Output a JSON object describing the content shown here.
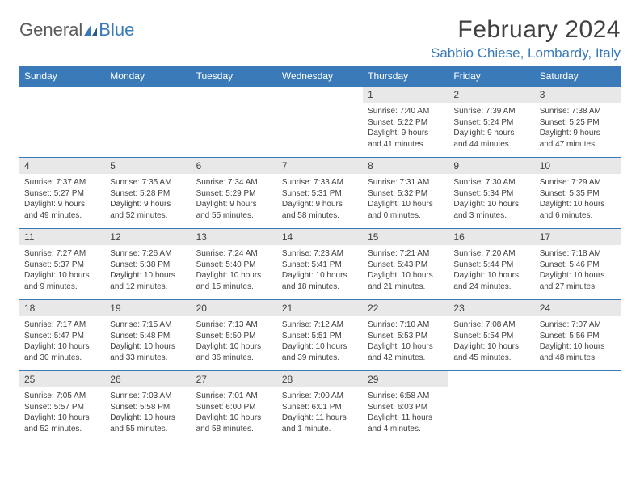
{
  "brand": {
    "part1": "General",
    "part2": "Blue"
  },
  "title": "February 2024",
  "location": "Sabbio Chiese, Lombardy, Italy",
  "colors": {
    "header_bg": "#3a7ab8",
    "header_fg": "#ffffff",
    "daynum_bg": "#e8e8e8",
    "border": "#3a7ab8",
    "text": "#404040",
    "logo_gray": "#5a5a5a",
    "logo_blue": "#3a7ab8"
  },
  "weekdays": [
    "Sunday",
    "Monday",
    "Tuesday",
    "Wednesday",
    "Thursday",
    "Friday",
    "Saturday"
  ],
  "weeks": [
    [
      {
        "empty": true
      },
      {
        "empty": true
      },
      {
        "empty": true
      },
      {
        "empty": true
      },
      {
        "date": "1",
        "sunrise": "Sunrise: 7:40 AM",
        "sunset": "Sunset: 5:22 PM",
        "daylight1": "Daylight: 9 hours",
        "daylight2": "and 41 minutes."
      },
      {
        "date": "2",
        "sunrise": "Sunrise: 7:39 AM",
        "sunset": "Sunset: 5:24 PM",
        "daylight1": "Daylight: 9 hours",
        "daylight2": "and 44 minutes."
      },
      {
        "date": "3",
        "sunrise": "Sunrise: 7:38 AM",
        "sunset": "Sunset: 5:25 PM",
        "daylight1": "Daylight: 9 hours",
        "daylight2": "and 47 minutes."
      }
    ],
    [
      {
        "date": "4",
        "sunrise": "Sunrise: 7:37 AM",
        "sunset": "Sunset: 5:27 PM",
        "daylight1": "Daylight: 9 hours",
        "daylight2": "and 49 minutes."
      },
      {
        "date": "5",
        "sunrise": "Sunrise: 7:35 AM",
        "sunset": "Sunset: 5:28 PM",
        "daylight1": "Daylight: 9 hours",
        "daylight2": "and 52 minutes."
      },
      {
        "date": "6",
        "sunrise": "Sunrise: 7:34 AM",
        "sunset": "Sunset: 5:29 PM",
        "daylight1": "Daylight: 9 hours",
        "daylight2": "and 55 minutes."
      },
      {
        "date": "7",
        "sunrise": "Sunrise: 7:33 AM",
        "sunset": "Sunset: 5:31 PM",
        "daylight1": "Daylight: 9 hours",
        "daylight2": "and 58 minutes."
      },
      {
        "date": "8",
        "sunrise": "Sunrise: 7:31 AM",
        "sunset": "Sunset: 5:32 PM",
        "daylight1": "Daylight: 10 hours",
        "daylight2": "and 0 minutes."
      },
      {
        "date": "9",
        "sunrise": "Sunrise: 7:30 AM",
        "sunset": "Sunset: 5:34 PM",
        "daylight1": "Daylight: 10 hours",
        "daylight2": "and 3 minutes."
      },
      {
        "date": "10",
        "sunrise": "Sunrise: 7:29 AM",
        "sunset": "Sunset: 5:35 PM",
        "daylight1": "Daylight: 10 hours",
        "daylight2": "and 6 minutes."
      }
    ],
    [
      {
        "date": "11",
        "sunrise": "Sunrise: 7:27 AM",
        "sunset": "Sunset: 5:37 PM",
        "daylight1": "Daylight: 10 hours",
        "daylight2": "and 9 minutes."
      },
      {
        "date": "12",
        "sunrise": "Sunrise: 7:26 AM",
        "sunset": "Sunset: 5:38 PM",
        "daylight1": "Daylight: 10 hours",
        "daylight2": "and 12 minutes."
      },
      {
        "date": "13",
        "sunrise": "Sunrise: 7:24 AM",
        "sunset": "Sunset: 5:40 PM",
        "daylight1": "Daylight: 10 hours",
        "daylight2": "and 15 minutes."
      },
      {
        "date": "14",
        "sunrise": "Sunrise: 7:23 AM",
        "sunset": "Sunset: 5:41 PM",
        "daylight1": "Daylight: 10 hours",
        "daylight2": "and 18 minutes."
      },
      {
        "date": "15",
        "sunrise": "Sunrise: 7:21 AM",
        "sunset": "Sunset: 5:43 PM",
        "daylight1": "Daylight: 10 hours",
        "daylight2": "and 21 minutes."
      },
      {
        "date": "16",
        "sunrise": "Sunrise: 7:20 AM",
        "sunset": "Sunset: 5:44 PM",
        "daylight1": "Daylight: 10 hours",
        "daylight2": "and 24 minutes."
      },
      {
        "date": "17",
        "sunrise": "Sunrise: 7:18 AM",
        "sunset": "Sunset: 5:46 PM",
        "daylight1": "Daylight: 10 hours",
        "daylight2": "and 27 minutes."
      }
    ],
    [
      {
        "date": "18",
        "sunrise": "Sunrise: 7:17 AM",
        "sunset": "Sunset: 5:47 PM",
        "daylight1": "Daylight: 10 hours",
        "daylight2": "and 30 minutes."
      },
      {
        "date": "19",
        "sunrise": "Sunrise: 7:15 AM",
        "sunset": "Sunset: 5:48 PM",
        "daylight1": "Daylight: 10 hours",
        "daylight2": "and 33 minutes."
      },
      {
        "date": "20",
        "sunrise": "Sunrise: 7:13 AM",
        "sunset": "Sunset: 5:50 PM",
        "daylight1": "Daylight: 10 hours",
        "daylight2": "and 36 minutes."
      },
      {
        "date": "21",
        "sunrise": "Sunrise: 7:12 AM",
        "sunset": "Sunset: 5:51 PM",
        "daylight1": "Daylight: 10 hours",
        "daylight2": "and 39 minutes."
      },
      {
        "date": "22",
        "sunrise": "Sunrise: 7:10 AM",
        "sunset": "Sunset: 5:53 PM",
        "daylight1": "Daylight: 10 hours",
        "daylight2": "and 42 minutes."
      },
      {
        "date": "23",
        "sunrise": "Sunrise: 7:08 AM",
        "sunset": "Sunset: 5:54 PM",
        "daylight1": "Daylight: 10 hours",
        "daylight2": "and 45 minutes."
      },
      {
        "date": "24",
        "sunrise": "Sunrise: 7:07 AM",
        "sunset": "Sunset: 5:56 PM",
        "daylight1": "Daylight: 10 hours",
        "daylight2": "and 48 minutes."
      }
    ],
    [
      {
        "date": "25",
        "sunrise": "Sunrise: 7:05 AM",
        "sunset": "Sunset: 5:57 PM",
        "daylight1": "Daylight: 10 hours",
        "daylight2": "and 52 minutes."
      },
      {
        "date": "26",
        "sunrise": "Sunrise: 7:03 AM",
        "sunset": "Sunset: 5:58 PM",
        "daylight1": "Daylight: 10 hours",
        "daylight2": "and 55 minutes."
      },
      {
        "date": "27",
        "sunrise": "Sunrise: 7:01 AM",
        "sunset": "Sunset: 6:00 PM",
        "daylight1": "Daylight: 10 hours",
        "daylight2": "and 58 minutes."
      },
      {
        "date": "28",
        "sunrise": "Sunrise: 7:00 AM",
        "sunset": "Sunset: 6:01 PM",
        "daylight1": "Daylight: 11 hours",
        "daylight2": "and 1 minute."
      },
      {
        "date": "29",
        "sunrise": "Sunrise: 6:58 AM",
        "sunset": "Sunset: 6:03 PM",
        "daylight1": "Daylight: 11 hours",
        "daylight2": "and 4 minutes."
      },
      {
        "empty": true
      },
      {
        "empty": true
      }
    ]
  ]
}
